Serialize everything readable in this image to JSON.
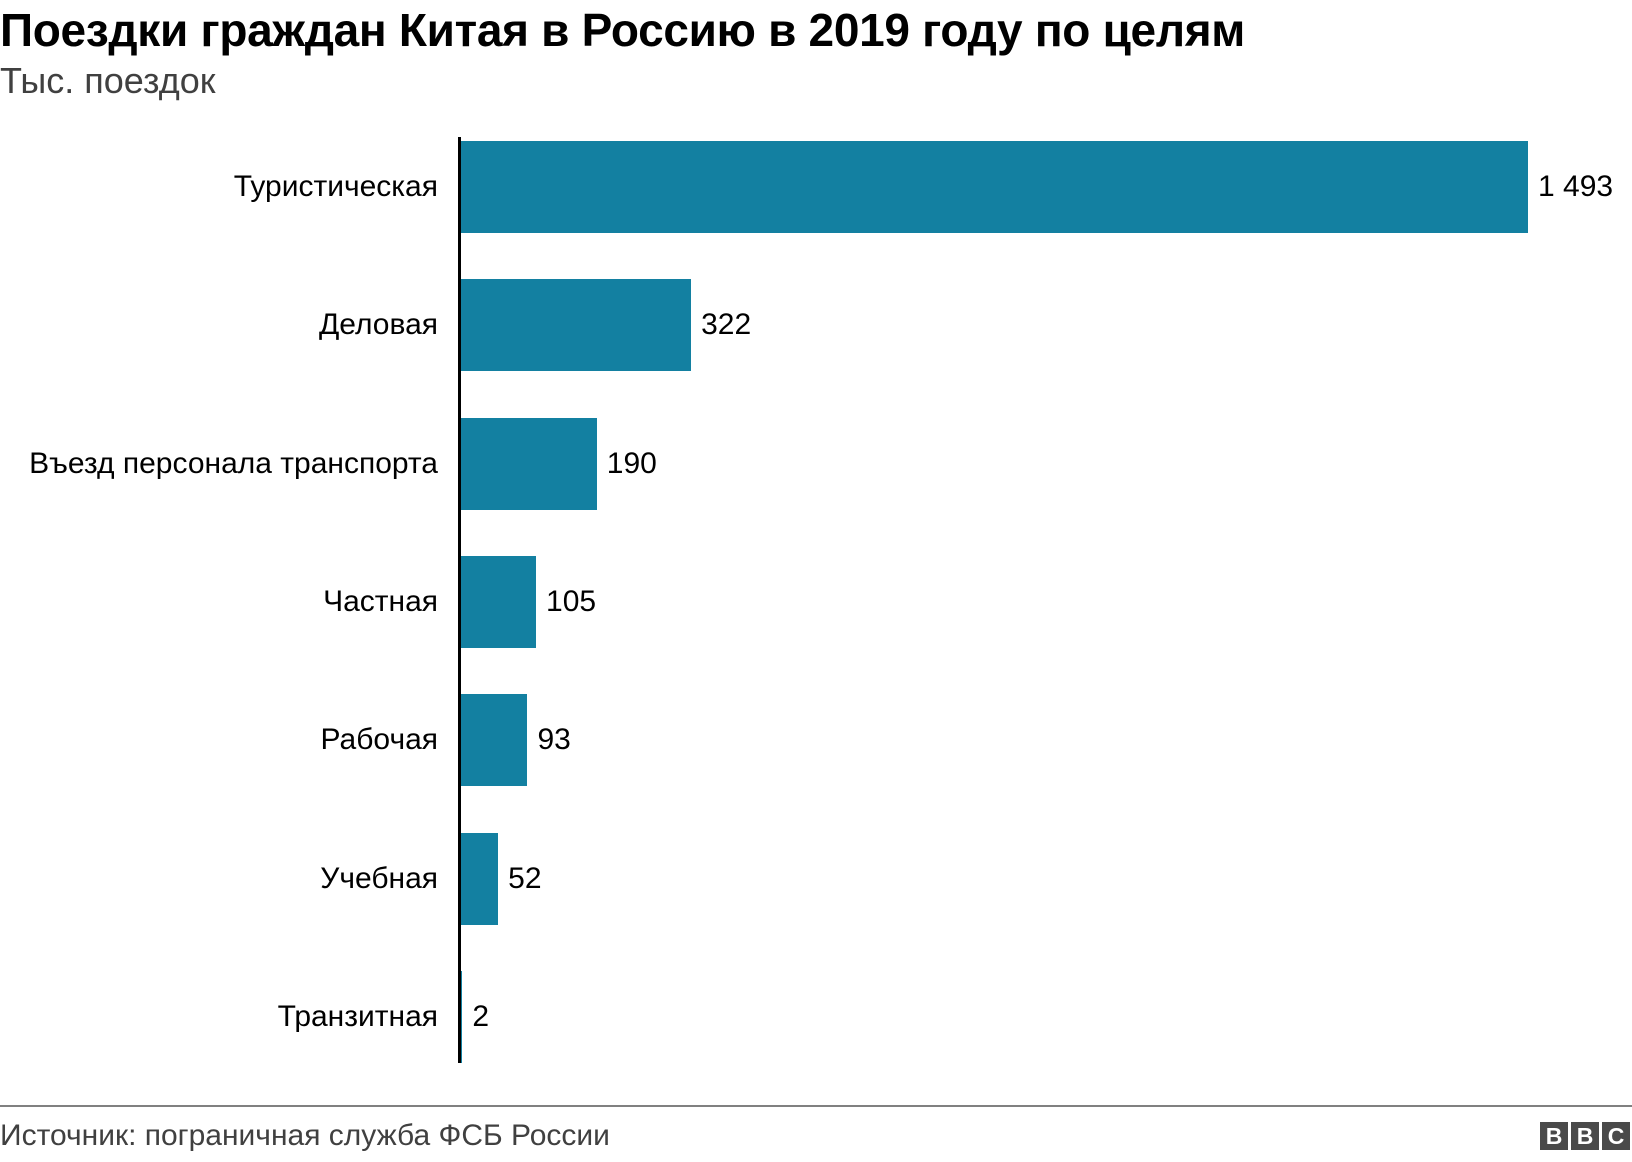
{
  "header": {
    "title": "Поездки граждан Китая в Россию в 2019 году по целям",
    "subtitle": "Тыс. поездок"
  },
  "footer": {
    "source": "Источник: пограничная служба ФСБ России",
    "logo": [
      "B",
      "B",
      "C"
    ]
  },
  "colors": {
    "bar": "#1380A1",
    "axis": "#000000",
    "text": "#000000",
    "subtitle": "#404040",
    "footer_rule": "#808080"
  },
  "chart_data": {
    "type": "bar",
    "orientation": "horizontal",
    "title": "Поездки граждан Китая в Россию в 2019 году по целям",
    "subtitle": "Тыс. поездок",
    "xlabel": "",
    "ylabel": "",
    "categories": [
      "Туристическая",
      "Деловая",
      "Въезд персонала транспорта",
      "Частная",
      "Рабочая",
      "Учебная",
      "Транзитная"
    ],
    "values": [
      1493,
      322,
      190,
      105,
      93,
      52,
      2
    ],
    "value_labels": [
      "1 493",
      "322",
      "190",
      "105",
      "93",
      "52",
      "2"
    ],
    "xlim": [
      0,
      1493
    ],
    "grid": false,
    "legend": null,
    "source": "Источник: пограничная служба ФСБ России"
  }
}
